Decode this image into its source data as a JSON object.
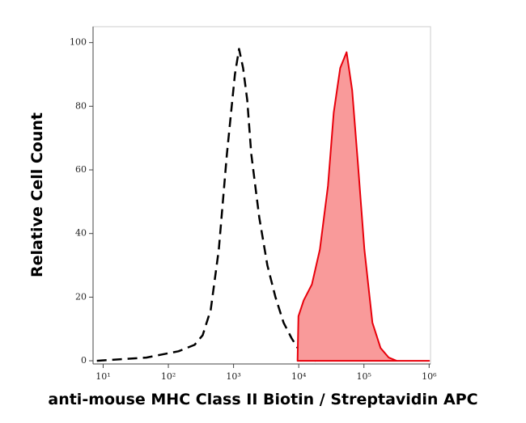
{
  "chart_data": {
    "type": "line",
    "xlabel": "anti-mouse MHC Class II Biotin / Streptavidin APC",
    "ylabel": "Relative Cell Count",
    "xscale": "log",
    "xlim": [
      7,
      1050000
    ],
    "ylim": [
      -1,
      105
    ],
    "xticks": [
      {
        "value": 10,
        "label": "10¹"
      },
      {
        "value": 100,
        "label": "10²"
      },
      {
        "value": 1000,
        "label": "10³"
      },
      {
        "value": 10000,
        "label": "10⁴"
      },
      {
        "value": 100000,
        "label": "10⁵"
      },
      {
        "value": 1000000,
        "label": "10⁶"
      }
    ],
    "yticks": [
      0,
      20,
      40,
      60,
      80,
      100
    ],
    "series": [
      {
        "color": "#000000",
        "dashed": true,
        "x": [
          8,
          19,
          46,
          81,
          143,
          252,
          336,
          447,
          594,
          791,
          1050,
          1213,
          1400,
          1620,
          1870,
          2480,
          3300,
          4390,
          5850,
          7800,
          10400,
          13800,
          18300
        ],
        "values": [
          0,
          0.5,
          1,
          2,
          3,
          5,
          8,
          16,
          35,
          65,
          90,
          98,
          92,
          82,
          65,
          45,
          30,
          20,
          12,
          7,
          3,
          1,
          0
        ]
      },
      {
        "color": "#e8000b",
        "fill": "#f99a9a",
        "dashed": false,
        "x": [
          9600,
          9900,
          11900,
          15900,
          21100,
          28100,
          34400,
          43200,
          54200,
          66100,
          80900,
          101600,
          135000,
          180000,
          240000,
          317000,
          1000000
        ],
        "values": [
          0,
          14,
          19,
          24,
          35,
          55,
          78,
          92,
          97,
          85,
          62,
          35,
          12,
          4,
          1,
          0,
          0
        ]
      }
    ]
  }
}
